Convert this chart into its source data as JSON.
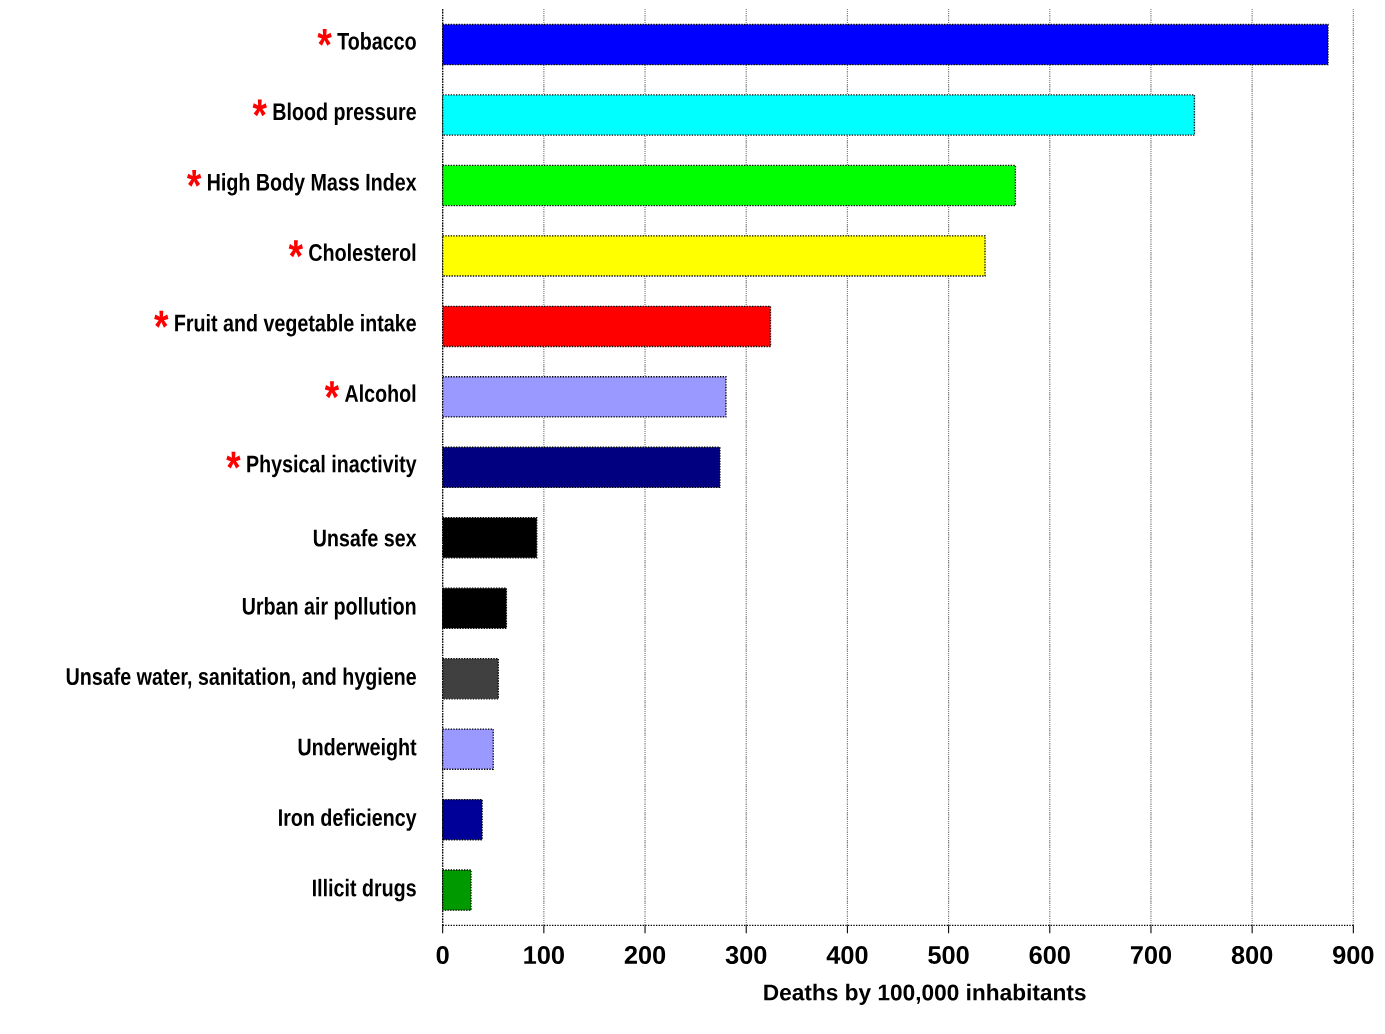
{
  "chart_data": {
    "type": "bar",
    "orientation": "horizontal",
    "xlabel": "Deaths by 100,000 inhabitants",
    "categories": [
      "Tobacco",
      "Blood pressure",
      "High Body Mass Index",
      "Cholesterol",
      "Fruit and vegetable intake",
      "Alcohol",
      "Physical inactivity",
      "Unsafe sex",
      "Urban air pollution",
      "Unsafe water, sanitation, and hygiene",
      "Underweight",
      "Iron deficiency",
      "Illicit drugs"
    ],
    "values": [
      875,
      743,
      566,
      536,
      324,
      280,
      274,
      93,
      63,
      55,
      50,
      39,
      28
    ],
    "colors": [
      "#0000ff",
      "#00ffff",
      "#00ff00",
      "#ffff00",
      "#ff0000",
      "#9999ff",
      "#000080",
      "#000000",
      "#000000",
      "#404040",
      "#9999ff",
      "#000099",
      "#009900"
    ],
    "xlim": [
      0,
      900
    ],
    "xticks": [
      0,
      100,
      200,
      300,
      400,
      500,
      600,
      700,
      800,
      900
    ],
    "grid": "x",
    "annotations": [
      "*",
      "*",
      "*",
      "*",
      "*",
      "*",
      "*"
    ]
  }
}
